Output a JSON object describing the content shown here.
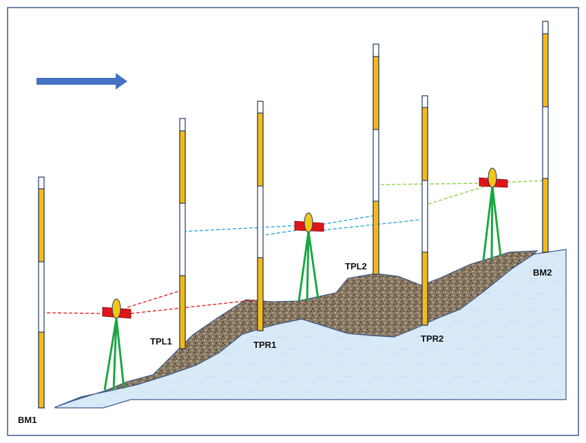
{
  "labels": {
    "bm1": "BM1",
    "tpl1": "TPL1",
    "tpr1": "TPR1",
    "tpl2": "TPL2",
    "tpr2": "TPR2",
    "bm2": "BM2"
  },
  "colors": {
    "frame": "#3a5b8c",
    "arrow": "#4472c4",
    "staff_yellow": "#f7b916",
    "staff_white": "#ffffff",
    "staff_outline": "#1f3864",
    "ground_top": "#8c7b64",
    "bedrock": "#d8e9f7",
    "tripod": "#1aa640",
    "instrument_red": "#e0151b",
    "instrument_lens": "#f5c518",
    "sight_red": "#e02020",
    "sight_blue": "#2aa6e0",
    "sight_green": "#8ccf3c"
  }
}
